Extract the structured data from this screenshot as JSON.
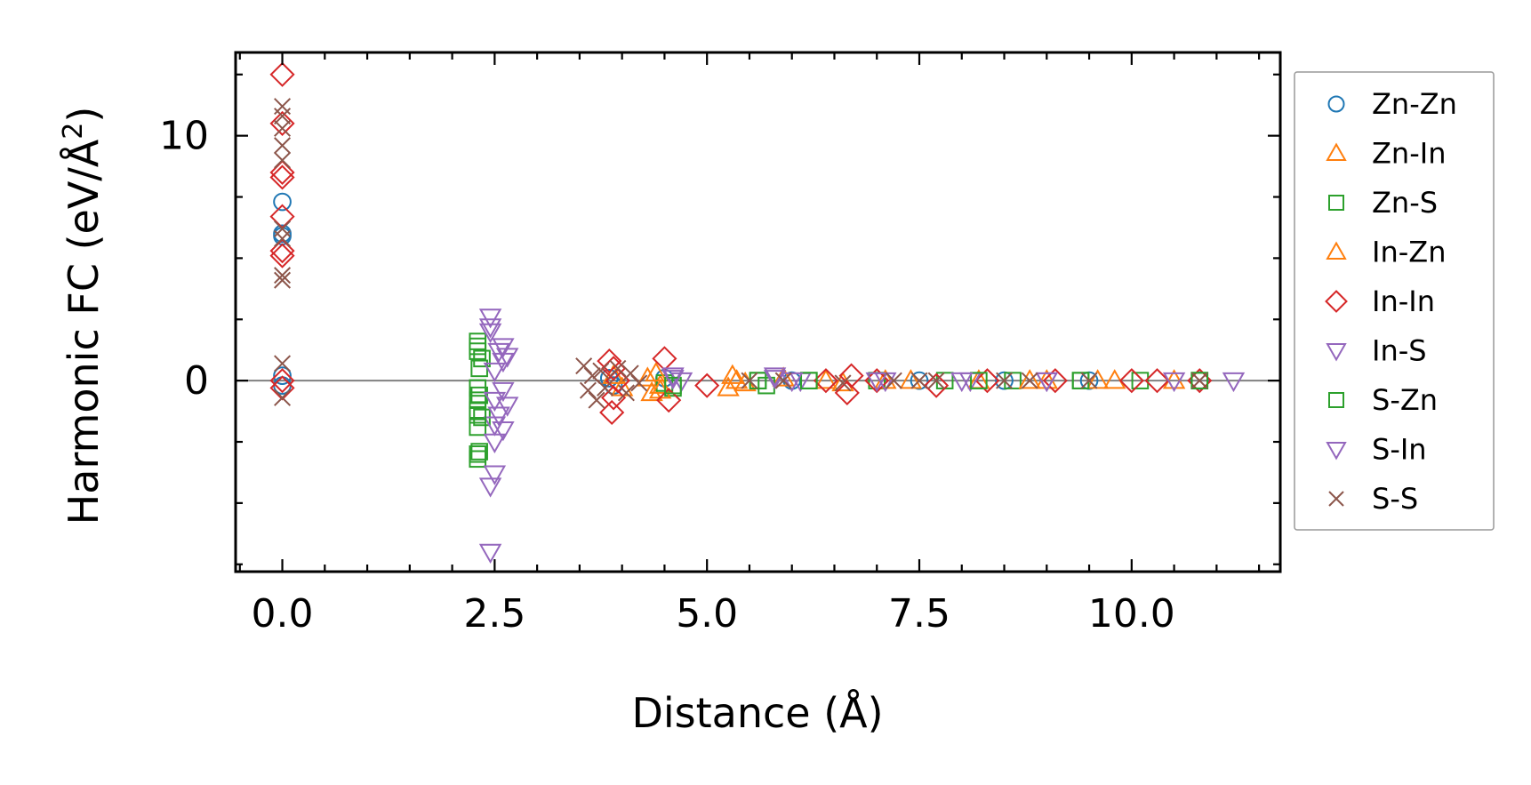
{
  "chart_data": {
    "type": "scatter",
    "title": "",
    "xlabel": "Distance (Å)",
    "ylabel": "Harmonic FC (eV/Å",
    "ylabel_sup": "2",
    "ylabel_close": ")",
    "xlim": [
      -0.55,
      11.75
    ],
    "ylim": [
      -7.8,
      13.4
    ],
    "xticks": [
      0.0,
      2.5,
      5.0,
      7.5,
      10.0
    ],
    "xtick_labels": [
      "0.0",
      "2.5",
      "5.0",
      "7.5",
      "10.0"
    ],
    "yticks": [
      0,
      10
    ],
    "ytick_labels": [
      "0",
      "10"
    ],
    "zero_line": 0,
    "legend_position": "right outside",
    "series": [
      {
        "name": "Zn-Zn",
        "marker": "circle",
        "color": "#1f77b4",
        "points": [
          [
            0.0,
            7.3
          ],
          [
            0.0,
            6.0
          ],
          [
            0.0,
            5.9
          ],
          [
            0.0,
            0.2
          ],
          [
            0.0,
            -0.2
          ],
          [
            3.85,
            0.1
          ],
          [
            3.9,
            -0.2
          ],
          [
            4.5,
            0.1
          ],
          [
            6.0,
            0.0
          ],
          [
            7.5,
            0.0
          ],
          [
            8.5,
            0.0
          ],
          [
            9.5,
            0.0
          ],
          [
            10.8,
            0.0
          ]
        ]
      },
      {
        "name": "Zn-In",
        "marker": "triangle-up",
        "color": "#ff7f0e",
        "points": [
          [
            3.9,
            0.2
          ],
          [
            4.0,
            -0.3
          ],
          [
            4.3,
            0.1
          ],
          [
            4.35,
            -0.5
          ],
          [
            4.45,
            -0.2
          ],
          [
            5.25,
            -0.3
          ],
          [
            5.35,
            0.0
          ],
          [
            5.9,
            0.1
          ],
          [
            6.6,
            -0.1
          ],
          [
            7.4,
            0.0
          ],
          [
            8.2,
            0.0
          ],
          [
            9.0,
            0.0
          ],
          [
            9.8,
            0.0
          ],
          [
            10.5,
            0.0
          ]
        ]
      },
      {
        "name": "Zn-S",
        "marker": "square",
        "color": "#2ca02c",
        "points": [
          [
            2.3,
            1.6
          ],
          [
            2.3,
            1.2
          ],
          [
            2.32,
            0.5
          ],
          [
            2.3,
            -0.3
          ],
          [
            2.3,
            -0.8
          ],
          [
            2.3,
            -1.2
          ],
          [
            2.3,
            -1.9
          ],
          [
            2.3,
            -3.0
          ],
          [
            2.3,
            -3.2
          ],
          [
            2.35,
            0.9
          ],
          [
            2.35,
            -1.5
          ],
          [
            4.5,
            -0.1
          ],
          [
            4.6,
            -0.3
          ],
          [
            5.6,
            0.0
          ],
          [
            5.7,
            -0.2
          ],
          [
            6.2,
            0.0
          ],
          [
            7.0,
            0.0
          ],
          [
            7.8,
            0.0
          ],
          [
            8.6,
            0.0
          ],
          [
            9.4,
            0.0
          ],
          [
            10.1,
            0.0
          ],
          [
            10.8,
            0.0
          ]
        ]
      },
      {
        "name": "In-Zn",
        "marker": "triangle-up",
        "color": "#ff7f0e",
        "points": [
          [
            4.4,
            0.3
          ],
          [
            4.45,
            -0.4
          ],
          [
            5.3,
            0.2
          ],
          [
            5.45,
            -0.1
          ],
          [
            6.4,
            0.0
          ],
          [
            7.1,
            0.0
          ],
          [
            8.8,
            0.0
          ],
          [
            9.6,
            0.0
          ]
        ]
      },
      {
        "name": "In-In",
        "marker": "diamond",
        "color": "#d62728",
        "points": [
          [
            0.0,
            12.5
          ],
          [
            0.0,
            10.5
          ],
          [
            0.0,
            8.5
          ],
          [
            0.0,
            8.3
          ],
          [
            0.0,
            6.7
          ],
          [
            0.0,
            5.3
          ],
          [
            0.0,
            5.1
          ],
          [
            0.0,
            0.0
          ],
          [
            0.0,
            -0.3
          ],
          [
            3.85,
            0.8
          ],
          [
            3.9,
            0.5
          ],
          [
            3.9,
            -0.7
          ],
          [
            3.88,
            -1.3
          ],
          [
            3.95,
            0.0
          ],
          [
            4.5,
            0.9
          ],
          [
            4.55,
            -0.8
          ],
          [
            5.0,
            -0.2
          ],
          [
            6.4,
            0.0
          ],
          [
            6.65,
            -0.5
          ],
          [
            6.7,
            0.2
          ],
          [
            7.0,
            0.0
          ],
          [
            7.7,
            -0.2
          ],
          [
            8.3,
            0.0
          ],
          [
            9.1,
            0.0
          ],
          [
            10.0,
            0.0
          ],
          [
            10.3,
            0.0
          ],
          [
            10.8,
            0.0
          ]
        ]
      },
      {
        "name": "In-S",
        "marker": "triangle-down",
        "color": "#9467bd",
        "points": [
          [
            2.45,
            2.6
          ],
          [
            2.45,
            2.0
          ],
          [
            2.6,
            1.4
          ],
          [
            2.65,
            1.0
          ],
          [
            2.5,
            0.4
          ],
          [
            2.6,
            -0.4
          ],
          [
            2.65,
            -1.0
          ],
          [
            2.5,
            -1.8
          ],
          [
            2.5,
            -3.8
          ],
          [
            2.45,
            -4.3
          ],
          [
            2.45,
            -7.0
          ],
          [
            4.6,
            0.2
          ],
          [
            4.7,
            0.0
          ],
          [
            5.8,
            0.2
          ],
          [
            6.1,
            0.0
          ],
          [
            7.1,
            0.0
          ],
          [
            8.1,
            0.0
          ],
          [
            9.0,
            0.0
          ],
          [
            10.5,
            0.0
          ],
          [
            11.2,
            0.0
          ]
        ]
      },
      {
        "name": "S-Zn",
        "marker": "square",
        "color": "#2ca02c",
        "points": [
          [
            2.3,
            1.4
          ],
          [
            2.32,
            -0.6
          ],
          [
            2.3,
            -1.4
          ],
          [
            2.32,
            -2.9
          ],
          [
            4.6,
            -0.2
          ],
          [
            5.6,
            0.0
          ],
          [
            6.2,
            0.0
          ],
          [
            8.2,
            0.0
          ],
          [
            9.4,
            0.0
          ],
          [
            10.8,
            0.0
          ]
        ]
      },
      {
        "name": "S-In",
        "marker": "triangle-down",
        "color": "#9467bd",
        "points": [
          [
            2.45,
            2.2
          ],
          [
            2.55,
            1.2
          ],
          [
            2.6,
            0.8
          ],
          [
            2.5,
            -0.8
          ],
          [
            2.55,
            -1.4
          ],
          [
            2.6,
            -2.0
          ],
          [
            2.5,
            -2.5
          ],
          [
            4.6,
            0.1
          ],
          [
            5.8,
            0.1
          ],
          [
            6.0,
            0.0
          ],
          [
            7.0,
            0.0
          ],
          [
            8.0,
            0.0
          ],
          [
            9.0,
            0.0
          ]
        ]
      },
      {
        "name": "S-S",
        "marker": "x",
        "color": "#8c564b",
        "points": [
          [
            0.0,
            11.2
          ],
          [
            0.0,
            10.8
          ],
          [
            0.0,
            10.3
          ],
          [
            0.0,
            9.6
          ],
          [
            0.0,
            9.0
          ],
          [
            0.0,
            6.2
          ],
          [
            0.0,
            5.8
          ],
          [
            0.0,
            4.3
          ],
          [
            0.0,
            4.1
          ],
          [
            0.0,
            0.7
          ],
          [
            0.0,
            -0.7
          ],
          [
            3.55,
            0.6
          ],
          [
            3.6,
            -0.4
          ],
          [
            3.65,
            0.2
          ],
          [
            3.7,
            -0.8
          ],
          [
            3.75,
            0.4
          ],
          [
            3.8,
            -0.3
          ],
          [
            3.95,
            0.5
          ],
          [
            4.05,
            -0.5
          ],
          [
            4.1,
            0.3
          ],
          [
            4.2,
            -0.1
          ],
          [
            5.5,
            0.0
          ],
          [
            5.9,
            0.0
          ],
          [
            6.6,
            -0.1
          ],
          [
            7.2,
            0.0
          ],
          [
            7.5,
            0.0
          ],
          [
            7.7,
            0.0
          ],
          [
            8.5,
            0.0
          ],
          [
            8.8,
            0.0
          ],
          [
            9.5,
            0.0
          ],
          [
            10.8,
            0.0
          ]
        ]
      }
    ]
  }
}
